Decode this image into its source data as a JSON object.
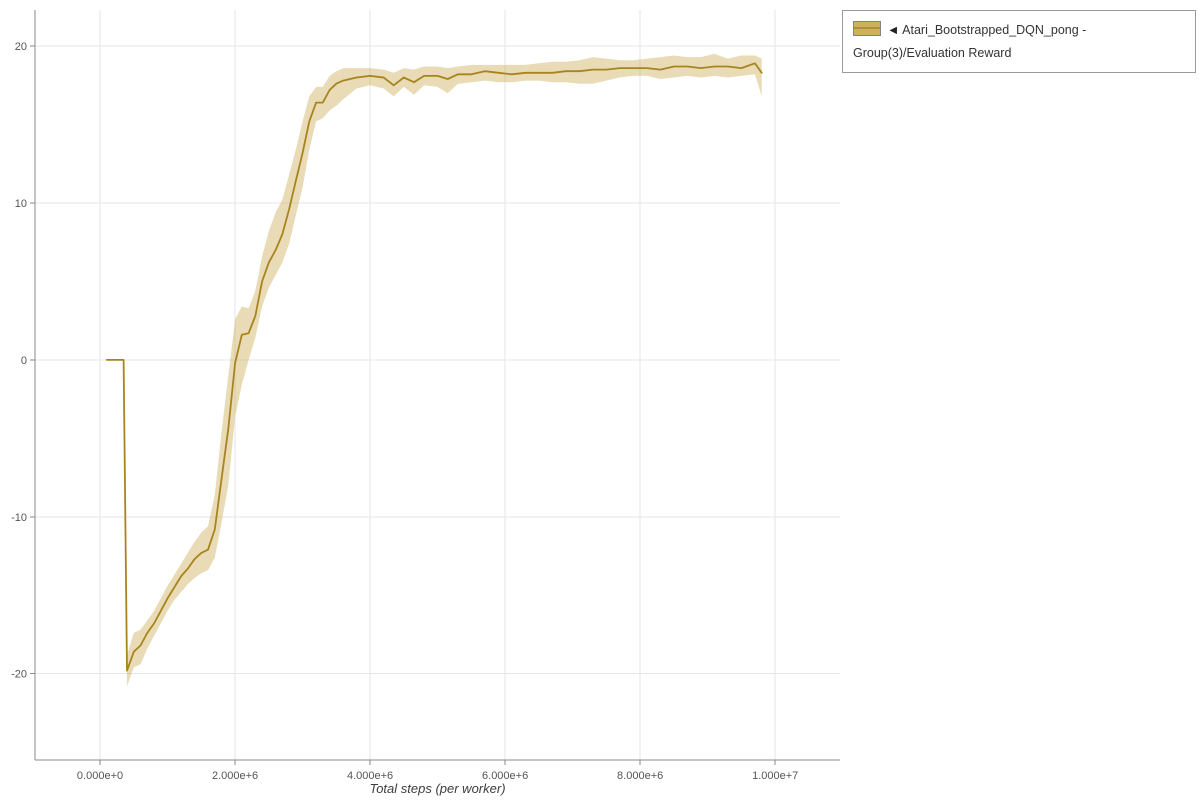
{
  "legend": {
    "marker": "◄",
    "label": "Atari_Bootstrapped_DQN_pong - Group(3)/Evaluation Reward"
  },
  "colors": {
    "line": "#a8841f",
    "band": "#c8a951",
    "grid": "#e6e6e6",
    "axis": "#8a8a8a"
  },
  "chart_data": {
    "type": "line",
    "title": "",
    "xlabel": "Total steps (per worker)",
    "ylabel": "",
    "grid": true,
    "legend_position": "top-right",
    "x_scale": 1000000,
    "xlim": [
      -963000,
      10960000
    ],
    "ylim": [
      -25.5,
      22.3
    ],
    "x_ticks": [
      {
        "value": 0,
        "label": "0.000e+0"
      },
      {
        "value": 2,
        "label": "2.000e+6"
      },
      {
        "value": 4,
        "label": "4.000e+6"
      },
      {
        "value": 6,
        "label": "6.000e+6"
      },
      {
        "value": 8,
        "label": "8.000e+6"
      },
      {
        "value": 10,
        "label": "1.000e+7"
      }
    ],
    "y_ticks": [
      {
        "value": -20,
        "label": "-20"
      },
      {
        "value": -10,
        "label": "-10"
      },
      {
        "value": 0,
        "label": "0"
      },
      {
        "value": 10,
        "label": "10"
      },
      {
        "value": 20,
        "label": "20"
      }
    ],
    "series": [
      {
        "name": "Atari_Bootstrapped_DQN_pong - Group(3)/Evaluation Reward",
        "color": "#a8841f",
        "band_color": "#c8a951",
        "band_opacity": 0.42,
        "x_millions": [
          0.1,
          0.35,
          0.4,
          0.5,
          0.6,
          0.7,
          0.8,
          0.9,
          1.0,
          1.1,
          1.2,
          1.3,
          1.4,
          1.5,
          1.6,
          1.7,
          1.8,
          1.9,
          2.0,
          2.1,
          2.2,
          2.3,
          2.4,
          2.5,
          2.6,
          2.7,
          2.8,
          2.9,
          3.0,
          3.1,
          3.2,
          3.3,
          3.4,
          3.5,
          3.6,
          3.8,
          4.0,
          4.2,
          4.35,
          4.5,
          4.65,
          4.8,
          5.0,
          5.15,
          5.3,
          5.5,
          5.7,
          5.9,
          6.1,
          6.3,
          6.5,
          6.7,
          6.9,
          7.1,
          7.3,
          7.5,
          7.7,
          7.9,
          8.1,
          8.3,
          8.5,
          8.7,
          8.9,
          9.1,
          9.3,
          9.5,
          9.7,
          9.8
        ],
        "mean": [
          0,
          0,
          -19.8,
          -18.6,
          -18.2,
          -17.4,
          -16.8,
          -16.0,
          -15.2,
          -14.5,
          -13.8,
          -13.3,
          -12.7,
          -12.3,
          -12.1,
          -10.8,
          -7.6,
          -4.4,
          -0.2,
          1.6,
          1.7,
          2.8,
          5.0,
          6.2,
          7.0,
          8.0,
          9.6,
          11.4,
          13.2,
          15.2,
          16.4,
          16.4,
          17.2,
          17.6,
          17.8,
          18.0,
          18.1,
          18.0,
          17.5,
          18.0,
          17.7,
          18.1,
          18.1,
          17.9,
          18.2,
          18.2,
          18.4,
          18.3,
          18.2,
          18.3,
          18.3,
          18.3,
          18.4,
          18.4,
          18.5,
          18.5,
          18.6,
          18.6,
          18.6,
          18.5,
          18.7,
          18.7,
          18.6,
          18.7,
          18.7,
          18.6,
          18.9,
          18.3
        ],
        "lower": [
          0,
          0,
          -20.8,
          -19.6,
          -19.4,
          -18.4,
          -17.6,
          -16.8,
          -16.0,
          -15.3,
          -14.8,
          -14.3,
          -13.9,
          -13.6,
          -13.4,
          -12.6,
          -10.4,
          -8.0,
          -3.6,
          -1.6,
          0.0,
          1.4,
          3.4,
          4.6,
          5.4,
          6.2,
          7.4,
          9.2,
          11.0,
          13.4,
          15.2,
          15.4,
          15.9,
          16.2,
          16.6,
          17.3,
          17.5,
          17.3,
          16.8,
          17.4,
          16.9,
          17.5,
          17.4,
          17.0,
          17.6,
          17.7,
          17.8,
          17.7,
          17.7,
          17.8,
          17.8,
          17.7,
          17.7,
          17.6,
          17.6,
          17.8,
          18.0,
          18.1,
          18.1,
          17.9,
          18.0,
          18.1,
          18.0,
          18.1,
          18.0,
          18.1,
          18.2,
          16.8
        ],
        "upper": [
          0,
          0,
          -18.8,
          -17.4,
          -17.2,
          -16.6,
          -16.0,
          -15.2,
          -14.4,
          -13.7,
          -13.0,
          -12.3,
          -11.6,
          -11.0,
          -10.6,
          -8.6,
          -4.6,
          -1.0,
          2.6,
          3.4,
          3.3,
          4.4,
          6.6,
          8.2,
          9.4,
          10.2,
          11.8,
          13.4,
          15.2,
          16.8,
          17.4,
          17.4,
          18.1,
          18.4,
          18.6,
          18.6,
          18.6,
          18.5,
          18.3,
          18.6,
          18.5,
          18.7,
          18.7,
          18.6,
          18.7,
          18.8,
          18.8,
          18.8,
          18.8,
          18.8,
          18.9,
          19.0,
          19.0,
          19.1,
          19.3,
          19.2,
          19.1,
          19.1,
          19.2,
          19.3,
          19.4,
          19.3,
          19.3,
          19.5,
          19.2,
          19.4,
          19.4,
          19.2
        ]
      }
    ]
  }
}
